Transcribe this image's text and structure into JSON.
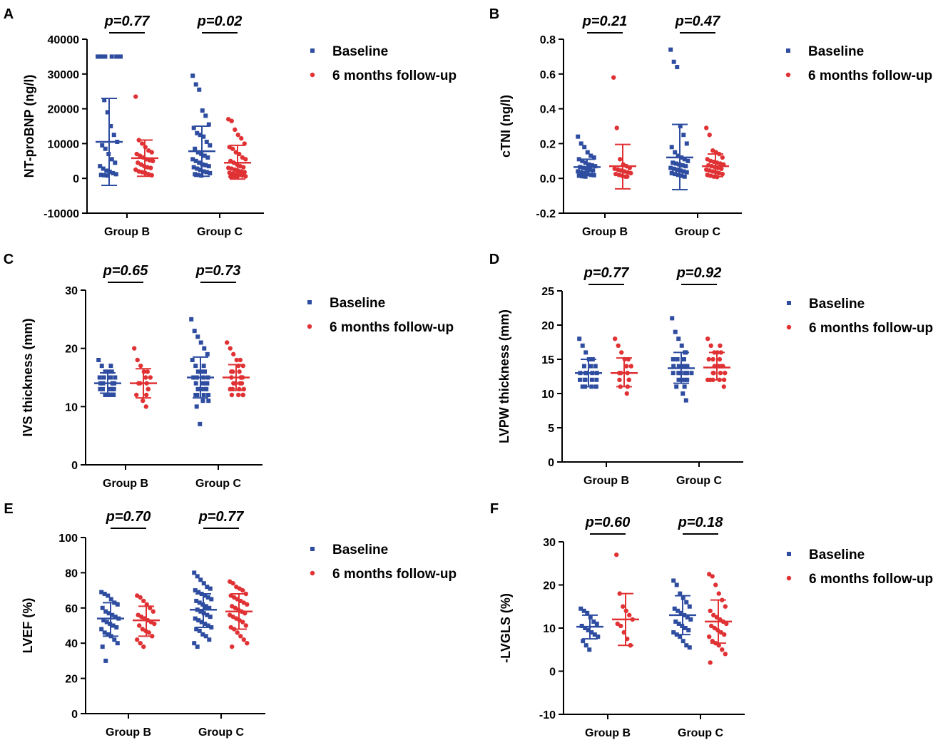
{
  "colors": {
    "baseline": "#2e4da0",
    "followup": "#e03234",
    "axis": "#000000"
  },
  "chart_data": [
    {
      "panel": "A",
      "type": "scatter",
      "ylabel": "NT-proBNP (ng/l)",
      "ylim": [
        -10000,
        40000
      ],
      "yticks": [
        -10000,
        0,
        10000,
        20000,
        30000,
        40000
      ],
      "ytick_labels": [
        "-10000",
        "0",
        "10000",
        "20000",
        "30000",
        "40000"
      ],
      "categories": [
        "Group B",
        "Group C"
      ],
      "pvalues": [
        "p=0.77",
        "p=0.02"
      ],
      "legend": [
        "Baseline",
        "6 months follow-up"
      ],
      "groups": [
        {
          "baseline": {
            "mean": 10500,
            "sd_low": -2000,
            "sd_high": 23000,
            "points": [
              35000,
              35000,
              35000,
              35000,
              35000,
              35000,
              35000,
              22500,
              19000,
              15000,
              12500,
              10500,
              9500,
              8500,
              7000,
              5500,
              4500,
              3500,
              2800,
              2200,
              1900,
              1500,
              1200,
              1000,
              900,
              800
            ]
          },
          "followup": {
            "mean": 5800,
            "sd_low": 600,
            "sd_high": 11000,
            "points": [
              23500,
              11000,
              10000,
              9000,
              8000,
              7500,
              7000,
              6500,
              6000,
              5500,
              5200,
              5000,
              4500,
              4000,
              3500,
              3200,
              3000,
              2500,
              2000,
              1800,
              1500,
              1200,
              900
            ]
          }
        },
        {
          "baseline": {
            "mean": 7800,
            "sd_low": 600,
            "sd_high": 15000,
            "points": [
              29500,
              27000,
              25500,
              19500,
              18000,
              15500,
              14500,
              13000,
              12500,
              12000,
              10500,
              9500,
              8500,
              7500,
              7000,
              6500,
              6000,
              5500,
              5000,
              4500,
              4000,
              3800,
              3500,
              3200,
              2800,
              2500,
              2000,
              1800,
              1500,
              1200,
              1000,
              800
            ]
          },
          "followup": {
            "mean": 4500,
            "sd_low": -200,
            "sd_high": 9500,
            "points": [
              17000,
              16500,
              14000,
              12500,
              11500,
              10000,
              9000,
              8500,
              7500,
              7000,
              6000,
              5500,
              5000,
              4500,
              4000,
              3500,
              3200,
              3000,
              2800,
              2500,
              2200,
              2000,
              1800,
              1600,
              1400,
              1200,
              1000,
              800,
              600,
              500,
              400,
              300
            ]
          }
        }
      ]
    },
    {
      "panel": "B",
      "type": "scatter",
      "ylabel": "cTNI (ng/l)",
      "ylim": [
        -0.2,
        0.8
      ],
      "yticks": [
        -0.2,
        0,
        0.2,
        0.4,
        0.6,
        0.8
      ],
      "ytick_labels": [
        "-0.2",
        "0.0",
        "0.2",
        "0.4",
        "0.6",
        "0.8"
      ],
      "categories": [
        "Group B",
        "Group C"
      ],
      "pvalues": [
        "p=0.21",
        "p=0.47"
      ],
      "legend": [
        "Baseline",
        "6 months follow-up"
      ],
      "groups": [
        {
          "baseline": {
            "mean": 0.065,
            "sd_low": 0.02,
            "sd_high": 0.11,
            "points": [
              0.24,
              0.2,
              0.18,
              0.15,
              0.13,
              0.12,
              0.11,
              0.1,
              0.09,
              0.08,
              0.075,
              0.07,
              0.065,
              0.06,
              0.055,
              0.05,
              0.045,
              0.04,
              0.035,
              0.03,
              0.025,
              0.02,
              0.018,
              0.015,
              0.012,
              0.01
            ]
          },
          "followup": {
            "mean": 0.07,
            "sd_low": -0.06,
            "sd_high": 0.195,
            "points": [
              0.58,
              0.29,
              0.11,
              0.08,
              0.07,
              0.06,
              0.055,
              0.05,
              0.045,
              0.04,
              0.035,
              0.03,
              0.025,
              0.02,
              0.015,
              0.01,
              0.01
            ]
          }
        },
        {
          "baseline": {
            "mean": 0.12,
            "sd_low": -0.065,
            "sd_high": 0.31,
            "points": [
              0.74,
              0.67,
              0.64,
              0.3,
              0.25,
              0.2,
              0.18,
              0.15,
              0.13,
              0.12,
              0.11,
              0.1,
              0.09,
              0.085,
              0.08,
              0.075,
              0.07,
              0.06,
              0.055,
              0.05,
              0.045,
              0.04,
              0.035,
              0.03,
              0.025,
              0.02,
              0.015,
              0.01
            ]
          },
          "followup": {
            "mean": 0.07,
            "sd_low": 0.01,
            "sd_high": 0.14,
            "points": [
              0.29,
              0.25,
              0.16,
              0.15,
              0.14,
              0.12,
              0.11,
              0.1,
              0.095,
              0.09,
              0.085,
              0.08,
              0.075,
              0.07,
              0.065,
              0.06,
              0.055,
              0.05,
              0.045,
              0.04,
              0.035,
              0.03,
              0.025,
              0.02,
              0.015,
              0.01,
              0.008
            ]
          }
        }
      ]
    },
    {
      "panel": "C",
      "type": "scatter",
      "ylabel": "IVS thickness (mm)",
      "ylim": [
        0,
        30
      ],
      "yticks": [
        0,
        10,
        20,
        30
      ],
      "ytick_labels": [
        "0",
        "10",
        "20",
        "30"
      ],
      "categories": [
        "Group B",
        "Group C"
      ],
      "pvalues": [
        "p=0.65",
        "p=0.73"
      ],
      "legend": [
        "Baseline",
        "6 months follow-up"
      ],
      "groups": [
        {
          "baseline": {
            "mean": 14,
            "sd_low": 12.3,
            "sd_high": 15.8,
            "points": [
              18,
              17,
              17,
              16,
              16,
              16,
              15,
              15,
              15,
              15,
              14,
              14,
              14,
              14,
              14,
              13,
              13,
              13,
              13,
              13,
              12,
              12,
              12,
              12
            ]
          },
          "followup": {
            "mean": 14,
            "sd_low": 11.5,
            "sd_high": 16.5,
            "points": [
              20,
              18,
              17,
              16,
              16,
              15,
              15,
              14,
              14,
              14,
              13,
              13,
              12,
              12,
              11,
              10
            ]
          }
        },
        {
          "baseline": {
            "mean": 15,
            "sd_low": 11.5,
            "sd_high": 18.5,
            "points": [
              25,
              23,
              22,
              21,
              20,
              19,
              18,
              17,
              17,
              16,
              16,
              16,
              15,
              15,
              15,
              15,
              14,
              14,
              14,
              14,
              13,
              13,
              13,
              13,
              12,
              12,
              12,
              12,
              11,
              11,
              10,
              7
            ]
          },
          "followup": {
            "mean": 15,
            "sd_low": 12.8,
            "sd_high": 17.2,
            "points": [
              21,
              20,
              19,
              18,
              18,
              17,
              17,
              16,
              16,
              16,
              15,
              15,
              15,
              15,
              14,
              14,
              14,
              14,
              13,
              13,
              13,
              13,
              12,
              12,
              12,
              12
            ]
          }
        }
      ]
    },
    {
      "panel": "D",
      "type": "scatter",
      "ylabel": "LVPW thickness (mm)",
      "ylim": [
        0,
        25
      ],
      "yticks": [
        0,
        5,
        10,
        15,
        20,
        25
      ],
      "ytick_labels": [
        "0",
        "5",
        "10",
        "15",
        "20",
        "25"
      ],
      "categories": [
        "Group B",
        "Group C"
      ],
      "pvalues": [
        "p=0.77",
        "p=0.92"
      ],
      "legend": [
        "Baseline",
        "6 months follow-up"
      ],
      "groups": [
        {
          "baseline": {
            "mean": 13,
            "sd_low": 11,
            "sd_high": 15,
            "points": [
              18,
              17,
              16,
              15,
              15,
              14,
              14,
              14,
              13,
              13,
              13,
              13,
              13,
              12,
              12,
              12,
              12,
              12,
              11,
              11,
              11,
              11
            ]
          },
          "followup": {
            "mean": 13,
            "sd_low": 11,
            "sd_high": 15.2,
            "points": [
              18,
              17,
              16,
              15,
              15,
              14,
              14,
              13,
              13,
              13,
              12,
              12,
              12,
              11,
              11,
              10
            ]
          }
        },
        {
          "baseline": {
            "mean": 13.7,
            "sd_low": 11.5,
            "sd_high": 16,
            "points": [
              21,
              19,
              18,
              17,
              16,
              16,
              15,
              15,
              15,
              14,
              14,
              14,
              14,
              14,
              13,
              13,
              13,
              13,
              13,
              13,
              12,
              12,
              12,
              12,
              11,
              11,
              10,
              9
            ]
          },
          "followup": {
            "mean": 13.8,
            "sd_low": 12,
            "sd_high": 16,
            "points": [
              18,
              17,
              17,
              16,
              16,
              16,
              15,
              15,
              15,
              14,
              14,
              14,
              14,
              13,
              13,
              13,
              13,
              12,
              12,
              12,
              12,
              12,
              11
            ]
          }
        }
      ]
    },
    {
      "panel": "E",
      "type": "scatter",
      "ylabel": "LVEF (%)",
      "ylim": [
        0,
        100
      ],
      "yticks": [
        0,
        20,
        40,
        60,
        80,
        100
      ],
      "ytick_labels": [
        "0",
        "20",
        "40",
        "60",
        "80",
        "100"
      ],
      "categories": [
        "Group B",
        "Group C"
      ],
      "pvalues": [
        "p=0.70",
        "p=0.77"
      ],
      "legend": [
        "Baseline",
        "6 months follow-up"
      ],
      "groups": [
        {
          "baseline": {
            "mean": 54,
            "sd_low": 44,
            "sd_high": 63,
            "points": [
              69,
              68,
              67,
              65,
              63,
              62,
              60,
              58,
              57,
              56,
              55,
              54,
              53,
              52,
              51,
              50,
              49,
              48,
              46,
              45,
              44,
              42,
              40,
              38,
              30
            ]
          },
          "followup": {
            "mean": 53,
            "sd_low": 44,
            "sd_high": 61,
            "points": [
              67,
              66,
              64,
              62,
              60,
              58,
              56,
              55,
              54,
              53,
              52,
              51,
              50,
              48,
              47,
              46,
              44,
              42,
              40,
              38
            ]
          }
        },
        {
          "baseline": {
            "mean": 59,
            "sd_low": 49,
            "sd_high": 68,
            "points": [
              80,
              78,
              76,
              74,
              72,
              71,
              70,
              69,
              68,
              67,
              66,
              65,
              64,
              63,
              62,
              61,
              60,
              60,
              59,
              58,
              57,
              56,
              55,
              54,
              53,
              52,
              51,
              50,
              49,
              48,
              47,
              45,
              44,
              42,
              40,
              38
            ]
          },
          "followup": {
            "mean": 58,
            "sd_low": 48,
            "sd_high": 68,
            "points": [
              75,
              74,
              72,
              71,
              70,
              68,
              67,
              66,
              65,
              64,
              63,
              62,
              61,
              60,
              59,
              58,
              57,
              56,
              55,
              54,
              53,
              52,
              50,
              49,
              48,
              46,
              44,
              42,
              40,
              38
            ]
          }
        }
      ]
    },
    {
      "panel": "F",
      "type": "scatter",
      "ylabel": "-LVGLS (%)",
      "ylim": [
        -10,
        30
      ],
      "yticks": [
        -10,
        0,
        10,
        20,
        30
      ],
      "ytick_labels": [
        "-10",
        "0",
        "10",
        "20",
        "30"
      ],
      "categories": [
        "Group B",
        "Group C"
      ],
      "pvalues": [
        "p=0.60",
        "p=0.18"
      ],
      "legend": [
        "Baseline",
        "6 months follow-up"
      ],
      "groups": [
        {
          "baseline": {
            "mean": 10.3,
            "sd_low": 7.5,
            "sd_high": 13,
            "points": [
              14.5,
              14,
              13.5,
              12.5,
              11.5,
              11,
              10.5,
              10,
              9.5,
              9,
              8.5,
              8,
              7,
              6,
              5
            ]
          },
          "followup": {
            "mean": 12,
            "sd_low": 6,
            "sd_high": 18,
            "points": [
              27,
              18,
              15,
              14,
              13,
              12,
              11,
              10.5,
              9,
              7.5,
              6,
              6
            ]
          }
        },
        {
          "baseline": {
            "mean": 13,
            "sd_low": 8.5,
            "sd_high": 17.5,
            "points": [
              21,
              20,
              18,
              17,
              16,
              15,
              14.5,
              14,
              13.5,
              13,
              12.5,
              12,
              11.5,
              11,
              10.5,
              10,
              9.5,
              9,
              8.5,
              8,
              7,
              6,
              5.5
            ]
          },
          "followup": {
            "mean": 11.5,
            "sd_low": 6.5,
            "sd_high": 16.5,
            "points": [
              22.5,
              22,
              20,
              18,
              16.5,
              15,
              14,
              13,
              12.5,
              12,
              11.5,
              11,
              10.5,
              10,
              9.5,
              9,
              8.5,
              8,
              7,
              6.5,
              6,
              5,
              4,
              2
            ]
          }
        }
      ]
    }
  ]
}
